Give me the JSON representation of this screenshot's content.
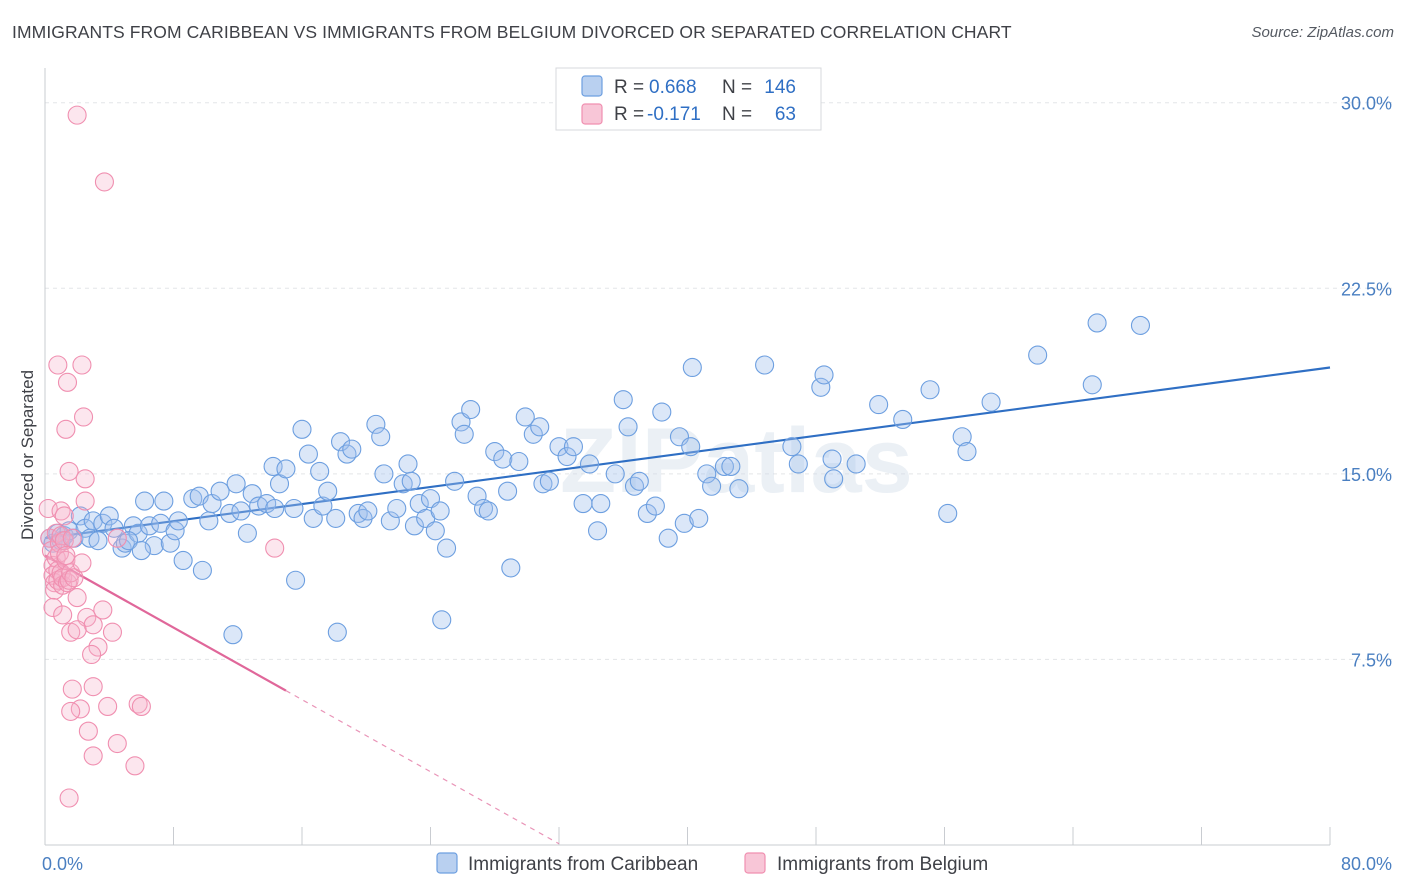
{
  "title": "IMMIGRANTS FROM CARIBBEAN VS IMMIGRANTS FROM BELGIUM DIVORCED OR SEPARATED CORRELATION CHART",
  "source": "Source: ZipAtlas.com",
  "watermark": "ZIPatlas",
  "colors": {
    "blue": "#6d9fe0",
    "blue_line": "#2f6fc4",
    "pink": "#f08fb0",
    "pink_line": "#e0679a"
  },
  "legend": {
    "r_label": "R =",
    "n_label": "N =",
    "series1": {
      "r": "0.668",
      "n": "146"
    },
    "series2": {
      "r": "-0.171",
      "n": "63"
    }
  },
  "chart_data": {
    "type": "scatter",
    "title": "IMMIGRANTS FROM CARIBBEAN VS IMMIGRANTS FROM BELGIUM DIVORCED OR SEPARATED CORRELATION CHART",
    "xlabel": "",
    "ylabel": "Divorced or Separated",
    "xlim": [
      0,
      80
    ],
    "ylim": [
      0,
      31
    ],
    "x_tick_labels": [
      "0.0%",
      "80.0%"
    ],
    "y_ticks": [
      7.5,
      15.0,
      22.5,
      30.0
    ],
    "y_tick_labels": [
      "7.5%",
      "15.0%",
      "22.5%",
      "30.0%"
    ],
    "grid": true,
    "legend_position": "top-center",
    "series": [
      {
        "name": "Immigrants from Caribbean",
        "color": "#6d9fe0",
        "trend": {
          "x": [
            0,
            80
          ],
          "y": [
            12.4,
            19.3
          ]
        },
        "points": [
          [
            0.3,
            12.4
          ],
          [
            0.5,
            12.2
          ],
          [
            0.8,
            12.6
          ],
          [
            1.0,
            12.3
          ],
          [
            1.2,
            12.5
          ],
          [
            1.5,
            12.7
          ],
          [
            1.8,
            12.4
          ],
          [
            2.2,
            13.3
          ],
          [
            2.5,
            12.8
          ],
          [
            2.8,
            12.4
          ],
          [
            3.0,
            13.1
          ],
          [
            3.3,
            12.3
          ],
          [
            3.6,
            13.0
          ],
          [
            4.0,
            13.3
          ],
          [
            4.3,
            12.8
          ],
          [
            4.8,
            12.0
          ],
          [
            5.0,
            12.2
          ],
          [
            5.5,
            12.9
          ],
          [
            5.8,
            12.6
          ],
          [
            6.2,
            13.9
          ],
          [
            6.5,
            12.9
          ],
          [
            6.8,
            12.1
          ],
          [
            7.2,
            13.0
          ],
          [
            7.4,
            13.9
          ],
          [
            7.8,
            12.2
          ],
          [
            8.1,
            12.7
          ],
          [
            8.3,
            13.1
          ],
          [
            8.6,
            11.5
          ],
          [
            9.2,
            14.0
          ],
          [
            9.6,
            14.1
          ],
          [
            9.8,
            11.1
          ],
          [
            10.2,
            13.1
          ],
          [
            10.4,
            13.8
          ],
          [
            10.9,
            14.3
          ],
          [
            11.5,
            13.4
          ],
          [
            11.9,
            14.6
          ],
          [
            12.2,
            13.5
          ],
          [
            12.6,
            12.6
          ],
          [
            12.9,
            14.2
          ],
          [
            13.3,
            13.7
          ],
          [
            13.8,
            13.8
          ],
          [
            14.2,
            15.3
          ],
          [
            14.3,
            13.6
          ],
          [
            14.6,
            14.6
          ],
          [
            15.0,
            15.2
          ],
          [
            15.5,
            13.6
          ],
          [
            15.6,
            10.7
          ],
          [
            16.0,
            16.8
          ],
          [
            16.4,
            15.8
          ],
          [
            16.7,
            13.2
          ],
          [
            17.1,
            15.1
          ],
          [
            17.3,
            13.7
          ],
          [
            17.6,
            14.3
          ],
          [
            18.1,
            13.2
          ],
          [
            18.4,
            16.3
          ],
          [
            18.8,
            15.8
          ],
          [
            19.1,
            16.0
          ],
          [
            19.5,
            13.4
          ],
          [
            19.8,
            13.2
          ],
          [
            20.1,
            13.5
          ],
          [
            20.6,
            17.0
          ],
          [
            20.9,
            16.5
          ],
          [
            21.1,
            15.0
          ],
          [
            21.5,
            13.1
          ],
          [
            21.9,
            13.6
          ],
          [
            22.3,
            14.6
          ],
          [
            22.6,
            15.4
          ],
          [
            22.8,
            14.7
          ],
          [
            23.0,
            12.9
          ],
          [
            23.3,
            13.8
          ],
          [
            23.7,
            13.2
          ],
          [
            24.0,
            14.0
          ],
          [
            24.3,
            12.7
          ],
          [
            24.6,
            13.5
          ],
          [
            25.0,
            12.0
          ],
          [
            25.5,
            14.7
          ],
          [
            25.9,
            17.1
          ],
          [
            26.1,
            16.6
          ],
          [
            26.5,
            17.6
          ],
          [
            26.9,
            14.1
          ],
          [
            27.3,
            13.6
          ],
          [
            27.6,
            13.5
          ],
          [
            28.0,
            15.9
          ],
          [
            28.5,
            15.6
          ],
          [
            28.8,
            14.3
          ],
          [
            29.0,
            11.2
          ],
          [
            29.5,
            15.5
          ],
          [
            29.9,
            17.3
          ],
          [
            30.4,
            16.6
          ],
          [
            30.8,
            16.9
          ],
          [
            31.0,
            14.6
          ],
          [
            31.4,
            14.7
          ],
          [
            32.0,
            16.1
          ],
          [
            32.5,
            15.7
          ],
          [
            32.9,
            16.1
          ],
          [
            33.5,
            13.8
          ],
          [
            33.9,
            15.4
          ],
          [
            34.4,
            12.7
          ],
          [
            34.6,
            13.8
          ],
          [
            35.5,
            15.0
          ],
          [
            36.0,
            18.0
          ],
          [
            36.3,
            16.9
          ],
          [
            36.7,
            14.5
          ],
          [
            37.0,
            14.7
          ],
          [
            37.5,
            13.4
          ],
          [
            38.0,
            13.7
          ],
          [
            38.4,
            17.5
          ],
          [
            38.8,
            12.4
          ],
          [
            39.5,
            16.5
          ],
          [
            39.8,
            13.0
          ],
          [
            40.2,
            16.1
          ],
          [
            40.7,
            13.2
          ],
          [
            40.3,
            19.3
          ],
          [
            41.2,
            15.0
          ],
          [
            41.5,
            14.5
          ],
          [
            42.3,
            15.3
          ],
          [
            42.7,
            15.3
          ],
          [
            43.2,
            14.4
          ],
          [
            44.8,
            19.4
          ],
          [
            46.5,
            16.1
          ],
          [
            46.9,
            15.4
          ],
          [
            48.3,
            18.5
          ],
          [
            48.5,
            19.0
          ],
          [
            49.0,
            15.6
          ],
          [
            49.1,
            14.8
          ],
          [
            50.5,
            15.4
          ],
          [
            51.9,
            17.8
          ],
          [
            53.4,
            17.2
          ],
          [
            55.1,
            18.4
          ],
          [
            56.2,
            13.4
          ],
          [
            57.1,
            16.5
          ],
          [
            57.4,
            15.9
          ],
          [
            58.9,
            17.9
          ],
          [
            61.8,
            19.8
          ],
          [
            65.2,
            18.6
          ],
          [
            65.5,
            21.1
          ],
          [
            68.2,
            21.0
          ],
          [
            11.7,
            8.5
          ],
          [
            18.2,
            8.6
          ],
          [
            24.7,
            9.1
          ],
          [
            5.2,
            12.3
          ],
          [
            6.0,
            11.9
          ]
        ]
      },
      {
        "name": "Immigrants from Belgium",
        "color": "#f08fb0",
        "trend": {
          "x": [
            0,
            32
          ],
          "y": [
            11.7,
            0.05
          ],
          "solid_to_x": 15
        },
        "points": [
          [
            0.2,
            13.6
          ],
          [
            0.3,
            12.4
          ],
          [
            0.4,
            11.9
          ],
          [
            0.5,
            11.3
          ],
          [
            0.5,
            10.9
          ],
          [
            0.6,
            10.6
          ],
          [
            0.6,
            10.3
          ],
          [
            0.7,
            12.6
          ],
          [
            0.7,
            11.6
          ],
          [
            0.8,
            11.1
          ],
          [
            0.8,
            10.7
          ],
          [
            0.9,
            12.2
          ],
          [
            0.9,
            11.8
          ],
          [
            1.0,
            12.5
          ],
          [
            1.0,
            11.0
          ],
          [
            1.1,
            10.5
          ],
          [
            1.1,
            10.8
          ],
          [
            1.2,
            12.3
          ],
          [
            1.3,
            11.5
          ],
          [
            1.3,
            11.7
          ],
          [
            1.4,
            10.6
          ],
          [
            1.5,
            10.7
          ],
          [
            1.6,
            11.0
          ],
          [
            1.7,
            12.4
          ],
          [
            1.8,
            10.8
          ],
          [
            2.0,
            10.0
          ],
          [
            2.3,
            11.4
          ],
          [
            2.6,
            9.2
          ],
          [
            3.0,
            8.9
          ],
          [
            3.3,
            8.0
          ],
          [
            3.6,
            9.5
          ],
          [
            1.0,
            13.5
          ],
          [
            1.2,
            13.3
          ],
          [
            2.5,
            13.9
          ],
          [
            4.5,
            12.4
          ],
          [
            0.8,
            19.4
          ],
          [
            1.4,
            18.7
          ],
          [
            2.3,
            19.4
          ],
          [
            1.3,
            16.8
          ],
          [
            2.4,
            17.3
          ],
          [
            1.5,
            15.1
          ],
          [
            2.5,
            14.8
          ],
          [
            0.5,
            9.6
          ],
          [
            1.1,
            9.3
          ],
          [
            1.6,
            8.6
          ],
          [
            2.0,
            8.7
          ],
          [
            4.2,
            8.6
          ],
          [
            2.9,
            7.7
          ],
          [
            1.7,
            6.3
          ],
          [
            3.0,
            6.4
          ],
          [
            2.2,
            5.5
          ],
          [
            3.9,
            5.6
          ],
          [
            5.8,
            5.7
          ],
          [
            6.0,
            5.6
          ],
          [
            1.6,
            5.4
          ],
          [
            2.7,
            4.6
          ],
          [
            4.5,
            4.1
          ],
          [
            3.0,
            3.6
          ],
          [
            5.6,
            3.2
          ],
          [
            1.5,
            1.9
          ],
          [
            3.7,
            26.8
          ],
          [
            2.0,
            29.5
          ],
          [
            14.3,
            12.0
          ]
        ]
      }
    ]
  }
}
